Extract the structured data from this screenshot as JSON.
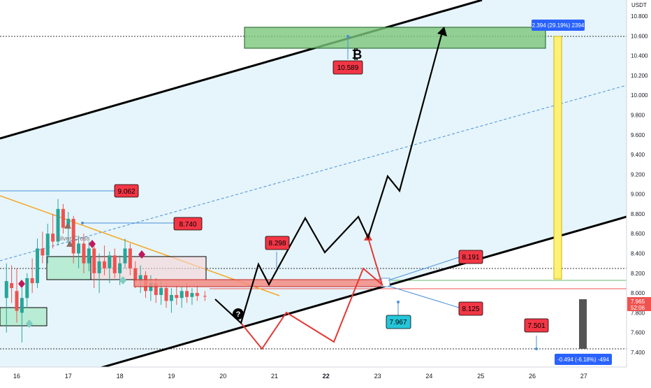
{
  "chart_data": {
    "type": "candlestick",
    "currency_label": "USDT",
    "y_ticks": [
      "10.800",
      "10.600",
      "10.400",
      "10.200",
      "10.000",
      "9.800",
      "9.600",
      "9.400",
      "9.200",
      "9.000",
      "8.800",
      "8.600",
      "8.400",
      "8.200",
      "8.000",
      "7.800",
      "7.600",
      "7.400"
    ],
    "x_ticks": [
      "16",
      "17",
      "18",
      "19",
      "20",
      "21",
      "22",
      "23",
      "24",
      "25",
      "26",
      "27"
    ],
    "ylim": [
      7.32,
      10.9
    ],
    "xlim": [
      15.75,
      27.9
    ],
    "price_labels": {
      "l9062": "9.062",
      "l8740": "8.740",
      "l8298": "8.298",
      "l8191": "8.191",
      "l8125": "8.125",
      "l7967": "7.967",
      "l7501": "7.501",
      "l10589": "10.589",
      "current_price": "7.965",
      "countdown": "52:06"
    },
    "measure_up": "2.394 (29.19%) 2394",
    "measure_down": "-0.494 (-6.18%) -494",
    "golden_cross_text": "Silver Cross",
    "bitcoin_symbol": "₿",
    "question_symbol": "?",
    "colors": {
      "bull": "#26a69a",
      "bear": "#ef5350",
      "label_red": "#f23645",
      "label_blue": "#2962ff",
      "target_zone": "#4caf50",
      "black_path": "#000000",
      "red_path": "#e53935",
      "channel_fill": "#e6f5fb"
    },
    "candles": [
      [
        15.8,
        7.95,
        8.3,
        7.6,
        8.12
      ],
      [
        15.9,
        8.1,
        8.28,
        7.9,
        8.05
      ],
      [
        16.0,
        8.02,
        8.25,
        7.7,
        7.82
      ],
      [
        16.1,
        7.8,
        8.05,
        7.5,
        7.95
      ],
      [
        16.2,
        7.95,
        8.2,
        7.85,
        8.15
      ],
      [
        16.3,
        8.15,
        8.35,
        8.0,
        8.1
      ],
      [
        16.4,
        8.1,
        8.55,
        8.05,
        8.45
      ],
      [
        16.5,
        8.45,
        8.62,
        8.3,
        8.38
      ],
      [
        16.6,
        8.38,
        8.7,
        8.3,
        8.6
      ],
      [
        16.7,
        8.6,
        8.8,
        8.45,
        8.52
      ],
      [
        16.8,
        8.52,
        8.95,
        8.48,
        8.85
      ],
      [
        16.9,
        8.85,
        8.9,
        8.6,
        8.66
      ],
      [
        17.0,
        8.66,
        8.82,
        8.5,
        8.75
      ],
      [
        17.1,
        8.75,
        8.78,
        8.3,
        8.4
      ],
      [
        17.2,
        8.4,
        8.58,
        8.25,
        8.5
      ],
      [
        17.3,
        8.5,
        8.6,
        8.2,
        8.3
      ],
      [
        17.4,
        8.3,
        8.52,
        8.22,
        8.45
      ],
      [
        17.5,
        8.45,
        8.5,
        8.05,
        8.2
      ],
      [
        17.6,
        8.2,
        8.4,
        8.0,
        8.32
      ],
      [
        17.7,
        8.32,
        8.48,
        8.18,
        8.25
      ],
      [
        17.8,
        8.25,
        8.42,
        8.1,
        8.38
      ],
      [
        17.9,
        8.38,
        8.45,
        8.15,
        8.2
      ],
      [
        18.0,
        8.2,
        8.38,
        8.08,
        8.3
      ],
      [
        18.1,
        8.3,
        8.55,
        8.25,
        8.45
      ],
      [
        18.2,
        8.45,
        8.5,
        8.18,
        8.25
      ],
      [
        18.3,
        8.25,
        8.32,
        8.05,
        8.12
      ],
      [
        18.4,
        8.12,
        8.28,
        8.0,
        8.18
      ],
      [
        18.5,
        8.18,
        8.22,
        7.95,
        8.02
      ],
      [
        18.6,
        8.02,
        8.18,
        7.92,
        8.1
      ],
      [
        18.7,
        8.1,
        8.15,
        7.9,
        7.98
      ],
      [
        18.8,
        7.98,
        8.12,
        7.88,
        8.05
      ],
      [
        18.9,
        8.05,
        8.1,
        7.85,
        7.92
      ],
      [
        19.0,
        7.92,
        8.05,
        7.8,
        7.98
      ],
      [
        19.1,
        7.98,
        8.08,
        7.88,
        7.95
      ],
      [
        19.2,
        7.95,
        8.06,
        7.85,
        8.02
      ],
      [
        19.3,
        8.02,
        8.1,
        7.9,
        7.96
      ],
      [
        19.4,
        7.96,
        8.05,
        7.88,
        8.0
      ],
      [
        19.5,
        8.0,
        8.08,
        7.92,
        7.97
      ],
      [
        19.65,
        7.97,
        8.02,
        7.92,
        7.965
      ]
    ]
  }
}
